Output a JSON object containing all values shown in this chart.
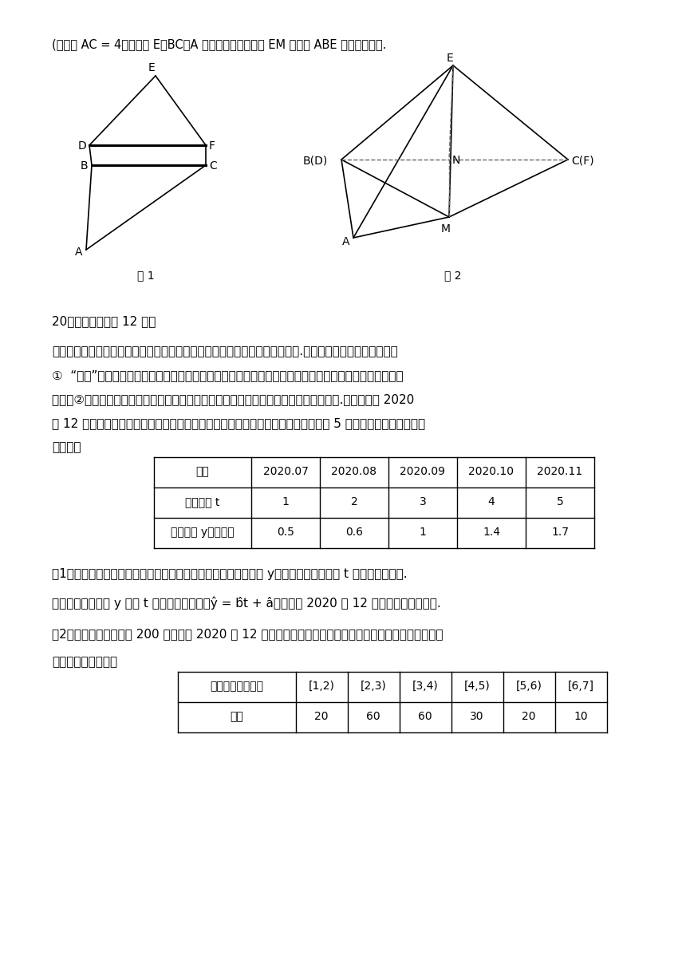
{
  "bg_color": "#ffffff",
  "text_color": "#000000",
  "title_line": "(２）若 AC = 4，二面角 E－BC－A 为直二面角，求直线 EM 与平面 ABE 所成的正弦値.",
  "fig1_label": "图 1",
  "fig2_label": "图 2",
  "problem20_header": "20．（本小题满分 12 分）",
  "problem20_text1": "为了缓解日益拥堕的交通状况，不少城市实施车牌竞价策略，以控制车辆数量.某地车牌竞价的基本规则是：",
  "problem20_text2": "①  “盲拍”，即所有参与竞拍的人都是网络报价，每个人不知晓其他人的报价，也不知道参与当期竞拍的总",
  "problem20_text3": "人数；②竞价时间截止后，系统根据当期车牌配额，按照竞拍人的出价从高到低分配名额.某人拟参加 2020",
  "problem20_text4": "年 12 月份的车牌竞拍，他为了预测最低成交价，根据竞拍网站的公告，统计了最近 5 个月参与竞拍的人数（见",
  "problem20_text5": "下表）：",
  "table1_headers": [
    "月份",
    "2020.07",
    "2020.08",
    "2020.09",
    "2020.10",
    "2020.11"
  ],
  "table1_row1_label": "月份编号 t",
  "table1_row1_values": [
    "1",
    "2",
    "3",
    "4",
    "5"
  ],
  "table1_row2_label": "竞拍人数 y（万人）",
  "table1_row2_values": [
    "0.5",
    "0.6",
    "1",
    "1.4",
    "1.7"
  ],
  "sub1_text1": "（1）由收集数据的散点图发现，可用线性回归模型拟合竞拍人数 y（万人）与月份编号 t 之间的相关关系.",
  "sub1_text2": "请用最小二乘法求 y 关于 t 的线性回归方程：ŷ = b̂t + â，并预测 2020 年 12 月份参与竞拍的人数.",
  "sub2_text1": "（2）某市场调研机构对 200 位拟参加 2020 年 12 月份车牌竞拍人员的报价价格进行了一个抽样调查，得到",
  "sub2_text2": "如下的一份频数表：",
  "table2_headers": [
    "报价区间（万元）",
    "[1,2)",
    "[2,3)",
    "[3,4)",
    "[4,5)",
    "[5,6)",
    "[6,7]"
  ],
  "table2_row_label": "频数",
  "table2_row_values": [
    "20",
    "60",
    "60",
    "30",
    "20",
    "10"
  ]
}
